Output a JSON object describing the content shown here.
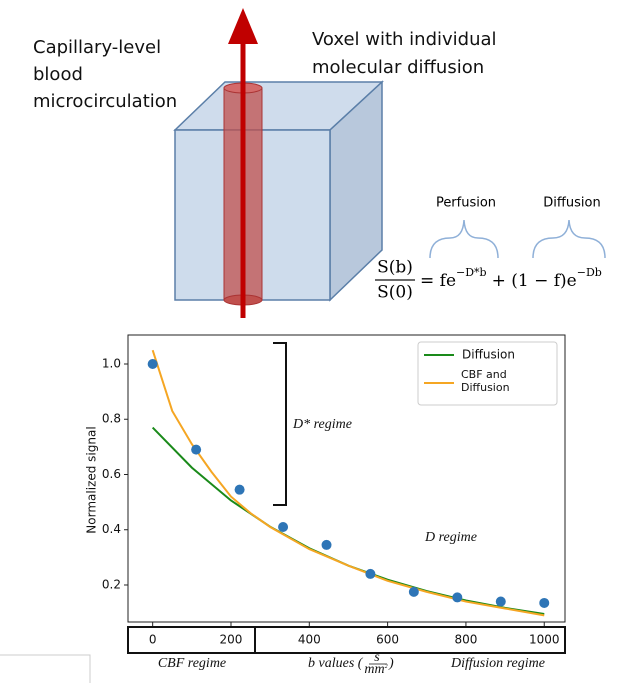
{
  "diagram": {
    "capillary_label": [
      "Capillary-level",
      "blood",
      "microcirculation"
    ],
    "voxel_label": [
      "Voxel with individual",
      "molecular diffusion"
    ],
    "perfusion_label": "Perfusion",
    "diffusion_label": "Diffusion",
    "equation": {
      "numerator": "S(b)",
      "denominator": "S(0)",
      "term1": "= fe",
      "exp1": "−D*b",
      "term2": "+ (1 − f)e",
      "exp2": "−Db"
    }
  },
  "chart_data": {
    "type": "line",
    "ylabel": "Normalized signal",
    "xlabel_parts": [
      "b values (",
      "s",
      "mm",
      "2",
      ")"
    ],
    "xlim": [
      -63,
      1053
    ],
    "ylim": [
      0.066,
      1.105
    ],
    "xticks": [
      0,
      200,
      400,
      600,
      800,
      1000
    ],
    "yticks": [
      0.2,
      0.4,
      0.6,
      0.8,
      {
        "value": 1,
        "label": "1.0"
      }
    ],
    "series": [
      {
        "name": "Diffusion",
        "type": "line",
        "color": "#1a8a1a",
        "x": [
          0,
          100,
          200,
          300,
          400,
          500,
          600,
          700,
          800,
          900,
          1000
        ],
        "values": [
          0.77,
          0.625,
          0.506,
          0.411,
          0.333,
          0.27,
          0.219,
          0.178,
          0.144,
          0.117,
          0.095
        ]
      },
      {
        "name": "CBF and Diffusion",
        "type": "line",
        "color": "#f5a623",
        "x": [
          0,
          50,
          100,
          150,
          200,
          250,
          300,
          400,
          500,
          600,
          700,
          800,
          900,
          1000
        ],
        "values": [
          1.05,
          0.83,
          0.71,
          0.61,
          0.52,
          0.46,
          0.41,
          0.33,
          0.27,
          0.215,
          0.175,
          0.14,
          0.115,
          0.09
        ]
      },
      {
        "type": "scatter",
        "color": "#2e75b6",
        "x": [
          0,
          111,
          222,
          333,
          444,
          556,
          667,
          778,
          889,
          1000
        ],
        "values": [
          1.0,
          0.69,
          0.545,
          0.41,
          0.345,
          0.24,
          0.175,
          0.155,
          0.14,
          0.135
        ]
      }
    ],
    "annotations": {
      "d_star": "D* regime",
      "d": "D regime",
      "cbf": "CBF regime",
      "diffusion": "Diffusion regime"
    }
  }
}
